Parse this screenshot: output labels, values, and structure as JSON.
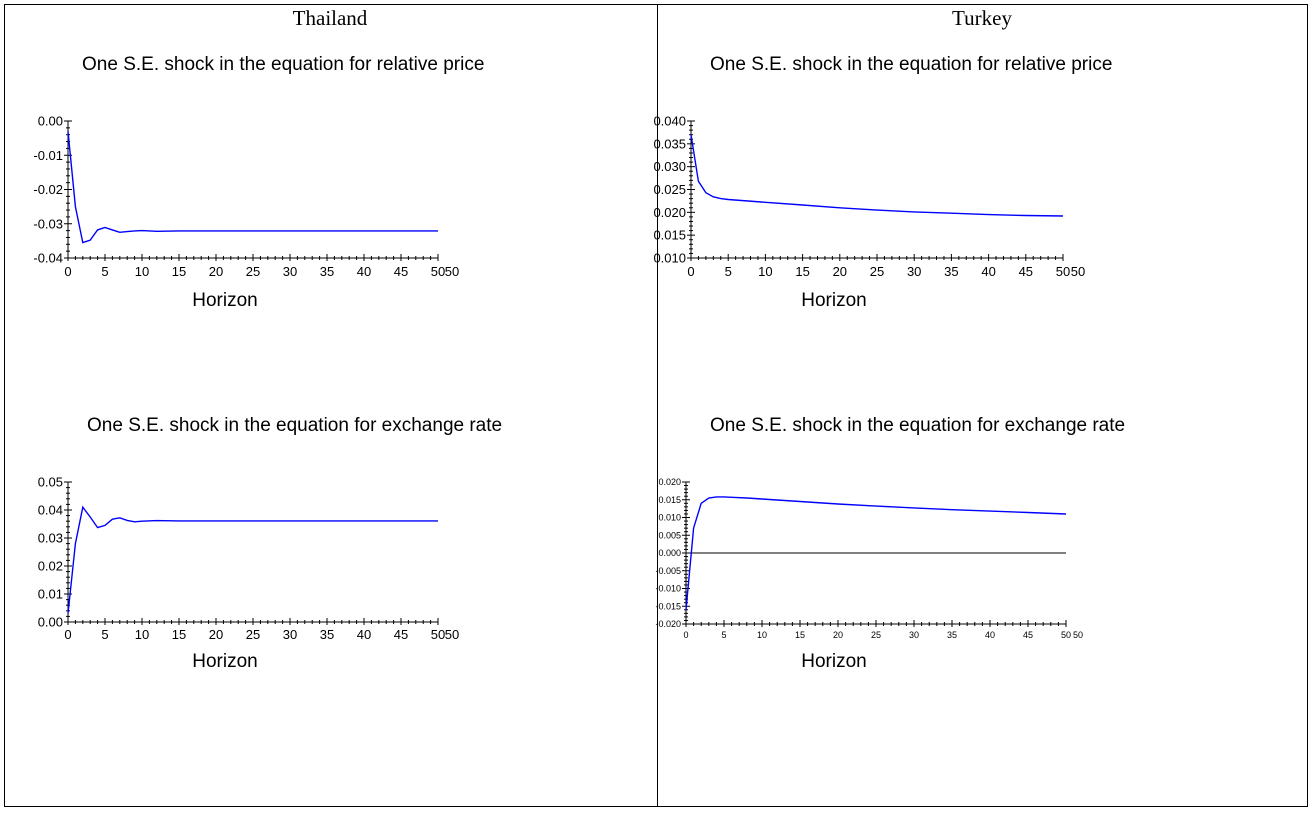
{
  "panels": [
    {
      "country": "Thailand"
    },
    {
      "country": "Turkey"
    }
  ],
  "chart_data": [
    {
      "type": "line",
      "panel": "Thailand",
      "title": "One S.E. shock in the equation for relative price",
      "xlabel": "Horizon",
      "ylabel": "",
      "xlim": [
        0,
        50
      ],
      "ylim": [
        -0.04,
        0.0
      ],
      "x_ticks": [
        "0",
        "5",
        "10",
        "15",
        "20",
        "25",
        "30",
        "35",
        "40",
        "45",
        "50",
        "50"
      ],
      "y_ticks": [
        "0.00",
        "-0.01",
        "-0.02",
        "-0.03",
        "-0.04"
      ],
      "series": [
        {
          "x": [
            0,
            1,
            2,
            3,
            4,
            5,
            6,
            7,
            8,
            9,
            10,
            12,
            15,
            20,
            25,
            30,
            35,
            40,
            45,
            50
          ],
          "y": [
            -0.003,
            -0.025,
            -0.0355,
            -0.0348,
            -0.0318,
            -0.0311,
            -0.0318,
            -0.0325,
            -0.0323,
            -0.0321,
            -0.032,
            -0.0322,
            -0.0321,
            -0.0321,
            -0.0321,
            -0.0321,
            -0.0321,
            -0.0321,
            -0.0321,
            -0.0321
          ]
        }
      ],
      "colors": {
        "series": "#0000ff"
      }
    },
    {
      "type": "line",
      "panel": "Turkey",
      "title": "One S.E. shock in the equation for relative price",
      "xlabel": "Horizon",
      "ylabel": "",
      "xlim": [
        0,
        50
      ],
      "ylim": [
        0.01,
        0.04
      ],
      "x_ticks": [
        "0",
        "5",
        "10",
        "15",
        "20",
        "25",
        "30",
        "35",
        "40",
        "45",
        "50",
        "50"
      ],
      "y_ticks": [
        "0.040",
        "0.035",
        "0.030",
        "0.025",
        "0.020",
        "0.015",
        "0.010"
      ],
      "series": [
        {
          "x": [
            0,
            1,
            2,
            3,
            4,
            5,
            10,
            15,
            20,
            25,
            30,
            35,
            40,
            45,
            50
          ],
          "y": [
            0.037,
            0.0268,
            0.0243,
            0.0234,
            0.023,
            0.0228,
            0.0222,
            0.0216,
            0.021,
            0.0205,
            0.0201,
            0.0198,
            0.0195,
            0.0193,
            0.0192
          ]
        }
      ],
      "colors": {
        "series": "#0000ff"
      }
    },
    {
      "type": "line",
      "panel": "Thailand",
      "title": "One S.E. shock in the equation for exchange rate",
      "xlabel": "Horizon",
      "ylabel": "",
      "xlim": [
        0,
        50
      ],
      "ylim": [
        0.0,
        0.05
      ],
      "x_ticks": [
        "0",
        "5",
        "10",
        "15",
        "20",
        "25",
        "30",
        "35",
        "40",
        "45",
        "50",
        "50"
      ],
      "y_ticks": [
        "0.05",
        "0.04",
        "0.03",
        "0.02",
        "0.01",
        "0.00"
      ],
      "series": [
        {
          "x": [
            0,
            1,
            2,
            3,
            4,
            5,
            6,
            7,
            8,
            9,
            10,
            12,
            15,
            20,
            25,
            30,
            35,
            40,
            45,
            50
          ],
          "y": [
            0.003,
            0.028,
            0.041,
            0.0375,
            0.0337,
            0.0345,
            0.0367,
            0.0372,
            0.0363,
            0.0358,
            0.036,
            0.0362,
            0.0361,
            0.0361,
            0.0361,
            0.0361,
            0.0361,
            0.0361,
            0.0361,
            0.0361
          ]
        }
      ],
      "colors": {
        "series": "#0000ff"
      }
    },
    {
      "type": "line",
      "panel": "Turkey",
      "title": "One S.E. shock in the equation for exchange rate",
      "xlabel": "Horizon",
      "ylabel": "",
      "xlim": [
        0,
        50
      ],
      "ylim": [
        -0.02,
        0.02
      ],
      "x_ticks": [
        "0",
        "5",
        "10",
        "15",
        "20",
        "25",
        "30",
        "35",
        "40",
        "45",
        "50",
        "50"
      ],
      "y_ticks": [
        "0.020",
        "0.015",
        "0.010",
        "0.005",
        "0.000",
        "-0.005",
        "-0.010",
        "-0.015",
        "-0.020"
      ],
      "zero_line": true,
      "series": [
        {
          "x": [
            0,
            1,
            2,
            3,
            4,
            5,
            6,
            8,
            10,
            15,
            20,
            25,
            30,
            35,
            40,
            45,
            50
          ],
          "y": [
            -0.016,
            0.007,
            0.014,
            0.0155,
            0.0158,
            0.0158,
            0.0157,
            0.0155,
            0.0152,
            0.0145,
            0.0138,
            0.0132,
            0.0127,
            0.0122,
            0.0118,
            0.0114,
            0.011
          ]
        }
      ],
      "colors": {
        "series": "#0000ff",
        "zero_line": "#000000"
      }
    }
  ]
}
